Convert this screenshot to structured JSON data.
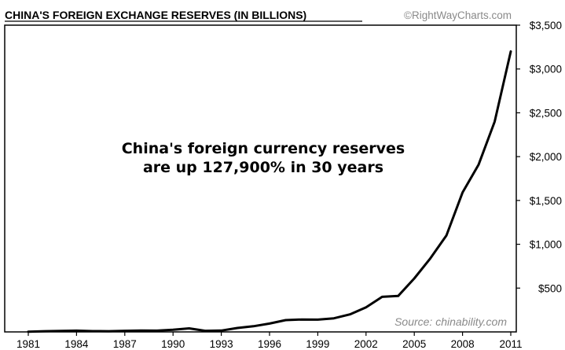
{
  "chart_data": {
    "type": "line",
    "title": "CHINA'S FOREIGN EXCHANGE RESERVES (IN BILLIONS)",
    "credit": "©RightWayCharts.com",
    "annotation": [
      "China's foreign currency reserves",
      "are up 127,900% in 30 years"
    ],
    "source": "Source: chinability.com",
    "xlabel": "",
    "ylabel": "",
    "xlim": [
      1981,
      2011
    ],
    "ylim": [
      0,
      3500
    ],
    "x_ticks": [
      {
        "value": 1981,
        "label": "1981"
      },
      {
        "value": 1984,
        "label": "1984"
      },
      {
        "value": 1987,
        "label": "1987"
      },
      {
        "value": 1990,
        "label": "1990"
      },
      {
        "value": 1993,
        "label": "1993"
      },
      {
        "value": 1996,
        "label": "1996"
      },
      {
        "value": 1999,
        "label": "1999"
      },
      {
        "value": 2002,
        "label": "2002"
      },
      {
        "value": 2005,
        "label": "2005"
      },
      {
        "value": 2008,
        "label": "2008"
      },
      {
        "value": 2011,
        "label": "2011"
      }
    ],
    "y_ticks": [
      {
        "value": 500,
        "label": "$500"
      },
      {
        "value": 1000,
        "label": "$1,000"
      },
      {
        "value": 1500,
        "label": "$1,500"
      },
      {
        "value": 2000,
        "label": "$2,000"
      },
      {
        "value": 2500,
        "label": "$2,500"
      },
      {
        "value": 3000,
        "label": "$3,000"
      },
      {
        "value": 3500,
        "label": "$3,500"
      }
    ],
    "grid": false,
    "legend": "none",
    "series": [
      {
        "color": "#000000",
        "x": [
          1981,
          1982,
          1983,
          1984,
          1985,
          1986,
          1987,
          1988,
          1989,
          1990,
          1991,
          1992,
          1993,
          1994,
          1995,
          1996,
          1997,
          1998,
          1999,
          2000,
          2001,
          2002,
          2003,
          2004,
          2005,
          2006,
          2007,
          2008,
          2009,
          2010,
          2011
        ],
        "y": [
          3,
          8,
          12,
          14,
          9,
          8,
          13,
          15,
          14,
          25,
          40,
          13,
          15,
          45,
          65,
          95,
          135,
          142,
          140,
          155,
          200,
          280,
          400,
          410,
          610,
          840,
          1100,
          1590,
          1910,
          2400,
          3200
        ]
      }
    ]
  }
}
